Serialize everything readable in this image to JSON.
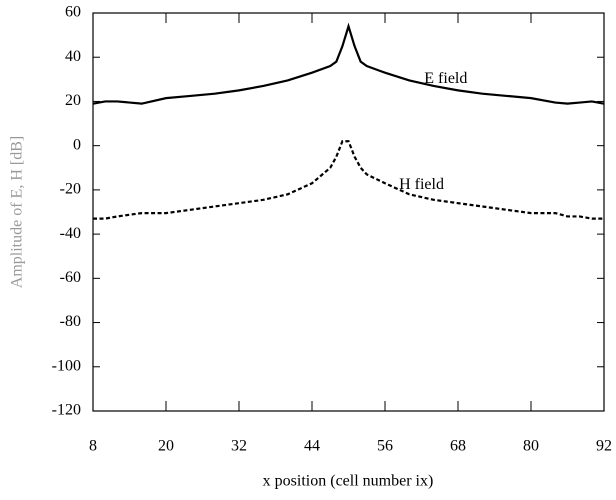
{
  "chart_data": {
    "type": "line",
    "xlabel": "x position (cell number ix)",
    "ylabel": "Amplitude of E, H [dB]",
    "xlim": [
      8,
      92
    ],
    "xticks": [
      8,
      20,
      32,
      44,
      56,
      68,
      80,
      92
    ],
    "ylim": [
      -120,
      60
    ],
    "yticks": [
      -120,
      -100,
      -80,
      -60,
      -40,
      -20,
      0,
      20,
      40,
      60
    ],
    "series": [
      {
        "name": "E field",
        "color": "#000000",
        "linestyle": "solid",
        "x": [
          8,
          10,
          12,
          16,
          20,
          24,
          28,
          32,
          36,
          40,
          44,
          47,
          48,
          49,
          50,
          51,
          52,
          53,
          56,
          60,
          64,
          68,
          72,
          76,
          80,
          84,
          86,
          88,
          90,
          92
        ],
        "values": [
          19,
          20,
          20,
          19,
          21.5,
          22.5,
          23.5,
          25,
          27,
          29.5,
          33,
          36,
          38,
          45,
          54,
          45,
          38,
          36,
          33,
          29.5,
          27,
          25,
          23.5,
          22.5,
          21.5,
          19.5,
          19,
          19.5,
          20,
          19
        ]
      },
      {
        "name": "H field",
        "color": "#000000",
        "linestyle": "dashed",
        "x": [
          8,
          10,
          12,
          16,
          20,
          24,
          28,
          32,
          36,
          40,
          44,
          47,
          48,
          49,
          50,
          51,
          52,
          53,
          56,
          60,
          64,
          68,
          72,
          76,
          80,
          84,
          86,
          88,
          90,
          92
        ],
        "values": [
          -33,
          -33,
          -32,
          -30.5,
          -30.5,
          -29,
          -27.5,
          -26,
          -24.5,
          -22,
          -17,
          -10,
          -5,
          2,
          2,
          -5,
          -10,
          -13,
          -17,
          -22,
          -24.5,
          -26,
          -27.5,
          -29,
          -30.5,
          -30.5,
          -32,
          -32,
          -33,
          -33
        ]
      }
    ]
  }
}
